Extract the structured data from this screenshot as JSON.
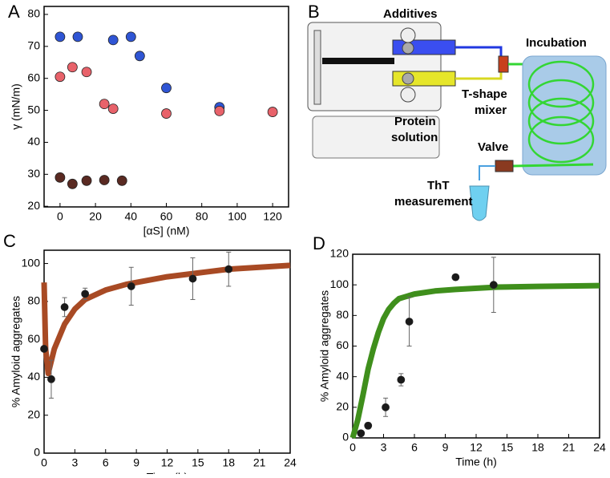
{
  "chart_data": [
    {
      "type": "scatter",
      "panel_label": "A",
      "x_label": "[αS] (nM)",
      "y_label": "γ (mN/m)",
      "xlim": [
        -9,
        129
      ],
      "ylim": [
        19.8,
        82.5
      ],
      "xticks": [
        0,
        20,
        40,
        60,
        80,
        100,
        120
      ],
      "yticks": [
        20,
        30,
        40,
        50,
        60,
        70,
        80
      ],
      "series": [
        {
          "color": "#2f55d4",
          "x": [
            0,
            10,
            30,
            40,
            45,
            60,
            90
          ],
          "values": [
            73,
            73,
            72,
            73,
            67,
            57,
            51
          ]
        },
        {
          "color": "#e8626a",
          "x": [
            0,
            7,
            15,
            25,
            30,
            60,
            90,
            120
          ],
          "values": [
            60.5,
            63.5,
            62,
            52,
            50.5,
            49,
            49.8,
            49.5
          ]
        },
        {
          "color": "#5a2a22",
          "x": [
            0,
            7,
            15,
            25,
            35
          ],
          "values": [
            29,
            27,
            28,
            28.2,
            28
          ]
        }
      ]
    },
    {
      "type": "scatter",
      "panel_label": "C",
      "x_label": "Time (h)",
      "y_label": "% Amyloid aggregates",
      "xlim": [
        0,
        24
      ],
      "ylim": [
        0,
        107
      ],
      "xticks": [
        0,
        3,
        6,
        9,
        12,
        15,
        18,
        21,
        24
      ],
      "yticks": [
        0,
        20,
        40,
        60,
        80,
        100
      ],
      "fit": {
        "color": "#a84a24",
        "x": [
          0,
          0.15,
          0.4,
          1,
          2,
          3,
          4,
          6,
          8,
          10,
          12,
          15,
          18,
          21,
          24
        ],
        "values": [
          90,
          55,
          42,
          55,
          68,
          76,
          81,
          86,
          89,
          91,
          93,
          95,
          97,
          98,
          99
        ]
      },
      "series": [
        {
          "color": "#1a1a1a",
          "x": [
            0,
            0.7,
            2,
            4,
            8.5,
            14.5,
            18
          ],
          "values": [
            55,
            39,
            77,
            84,
            88,
            92,
            97
          ],
          "errors": [
            0,
            10,
            5,
            3,
            10,
            11,
            9
          ]
        }
      ]
    },
    {
      "type": "scatter",
      "panel_label": "D",
      "x_label": "Time (h)",
      "y_label": "% Amyloid aggregates",
      "xlim": [
        0,
        24
      ],
      "ylim": [
        0,
        120
      ],
      "xticks": [
        0,
        3,
        6,
        9,
        12,
        15,
        18,
        21,
        24
      ],
      "yticks": [
        0,
        20,
        40,
        60,
        80,
        100,
        120
      ],
      "fit": {
        "color": "#3f8f1c",
        "x": [
          0,
          0.5,
          1,
          1.5,
          2,
          2.5,
          3,
          3.5,
          4,
          4.5,
          5,
          6,
          8,
          10,
          14,
          18,
          24
        ],
        "values": [
          0,
          12,
          28,
          45,
          58,
          69,
          78,
          84,
          88,
          91,
          92,
          94,
          96,
          97,
          98.5,
          99,
          99.5
        ]
      },
      "series": [
        {
          "color": "#1a1a1a",
          "x": [
            0.8,
            1.5,
            3.2,
            4.7,
            5.5,
            10,
            13.7
          ],
          "values": [
            3,
            8,
            20,
            38,
            76,
            105,
            100
          ],
          "errors": [
            0,
            2,
            6,
            4,
            16,
            0,
            18
          ]
        }
      ]
    }
  ],
  "diagram": {
    "panel_label": "B",
    "additives": "Additives",
    "incubation": "Incubation",
    "mixer": [
      "T-shape",
      "mixer"
    ],
    "protein": [
      "Protein",
      "solution"
    ],
    "valve": "Valve",
    "tht": [
      "ThT",
      "measurement"
    ]
  }
}
